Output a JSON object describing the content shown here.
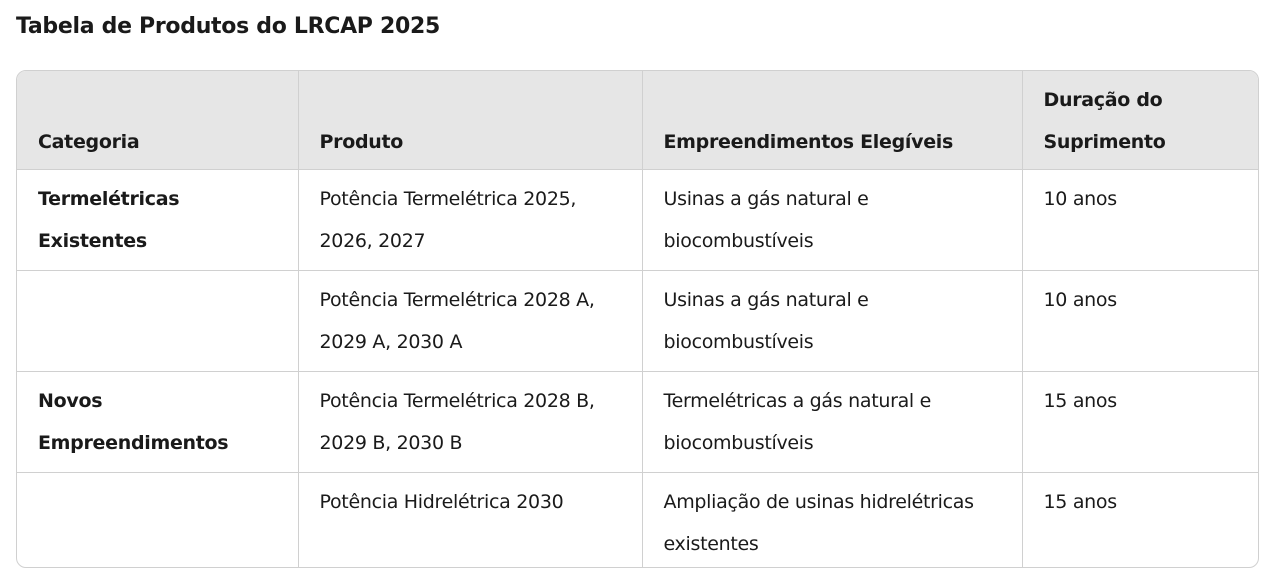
{
  "title": "Tabela de Produtos do LRCAP 2025",
  "table": {
    "headers": [
      "Categoria",
      "Produto",
      "Empreendimentos Elegíveis",
      "Duração do Suprimento"
    ],
    "rows": [
      [
        "Termelétricas Existentes",
        "Potência Termelétrica 2025, 2026, 2027",
        "Usinas a gás natural e biocombustíveis",
        "10 anos"
      ],
      [
        "",
        "Potência Termelétrica 2028 A, 2029 A, 2030 A",
        "Usinas a gás natural e biocombustíveis",
        "10 anos"
      ],
      [
        "Novos Empreendimentos",
        "Potência Termelétrica 2028 B, 2029 B, 2030 B",
        "Termelétricas a gás natural e biocombustíveis",
        "15 anos"
      ],
      [
        "",
        "Potência Hidrelétrica 2030",
        "Ampliação de usinas hidrelétricas existentes",
        "15 anos"
      ]
    ]
  }
}
